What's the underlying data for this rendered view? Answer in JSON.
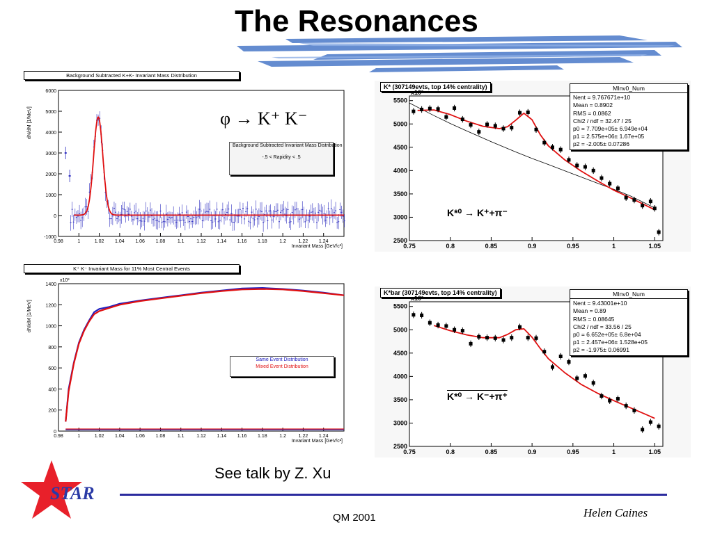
{
  "slide": {
    "title": "The  Resonances",
    "talk_note": "See talk by Z. Xu",
    "conference": "QM 2001",
    "author": "Helen Caines",
    "logo": "STAR",
    "brand_colors": {
      "blue": "#2b2b9e",
      "red": "#e8202a",
      "stripes": "#4a78c8"
    }
  },
  "chart_data": [
    {
      "id": "phi",
      "type": "scatter",
      "title": "Background Subtracted K+K- Invariant Mass Distribution",
      "xlabel": "Invariant Mass [GeV/c²]",
      "ylabel": "dN/dM [1/MeV]",
      "xlim": [
        0.98,
        1.26
      ],
      "ylim": [
        -1000,
        6000
      ],
      "x_ticks": [
        "0.98",
        "1",
        "1.02",
        "1.04",
        "1.06",
        "1.08",
        "1.1",
        "1.12",
        "1.14",
        "1.16",
        "1.18",
        "1.2",
        "1.22",
        "1.24"
      ],
      "y_ticks": [
        "-1000",
        "0",
        "1000",
        "2000",
        "3000",
        "4000",
        "5000",
        "6000"
      ],
      "annotation": "φ → K⁺ K⁻",
      "inset_title": "Background Subtracted Invariant Mass Distribution",
      "inset_subtitle": "-.5 < Rapidity < .5",
      "peak": {
        "mass": 1.019,
        "height": 4700,
        "width": 0.0045
      },
      "outliers": [
        [
          0.987,
          3000
        ],
        [
          0.991,
          1900
        ]
      ],
      "colors": {
        "points": "#3030c0",
        "fit": "#e01010"
      }
    },
    {
      "id": "kk-mixed",
      "type": "line",
      "title": "K⁺ K⁻ Invariant Mass for 11% Most Central Events",
      "xlabel": "Invariant Mass [GeV/c²]",
      "ylabel": "dN/dM [1/MeV]",
      "multiplier": "x10³",
      "xlim": [
        0.98,
        1.26
      ],
      "ylim": [
        0,
        1400
      ],
      "x_ticks": [
        "0.98",
        "1",
        "1.02",
        "1.04",
        "1.06",
        "1.08",
        "1.1",
        "1.12",
        "1.14",
        "1.16",
        "1.18",
        "1.2",
        "1.22",
        "1.24"
      ],
      "y_ticks": [
        "0",
        "200",
        "400",
        "600",
        "800",
        "1000",
        "1200",
        "1400"
      ],
      "series": [
        {
          "name": "Same Event Distribution",
          "color": "#2020c0",
          "x": [
            0.987,
            0.99,
            0.995,
            1.0,
            1.005,
            1.01,
            1.015,
            1.02,
            1.03,
            1.04,
            1.06,
            1.08,
            1.1,
            1.12,
            1.14,
            1.16,
            1.18,
            1.2,
            1.22,
            1.24,
            1.26
          ],
          "y": [
            90,
            400,
            650,
            840,
            960,
            1050,
            1130,
            1160,
            1180,
            1210,
            1240,
            1265,
            1290,
            1315,
            1335,
            1355,
            1360,
            1350,
            1335,
            1315,
            1290
          ]
        },
        {
          "name": "Mixed Event Distribution",
          "color": "#e01010",
          "x": [
            0.987,
            0.99,
            0.995,
            1.0,
            1.005,
            1.01,
            1.015,
            1.02,
            1.03,
            1.04,
            1.06,
            1.08,
            1.1,
            1.12,
            1.14,
            1.16,
            1.18,
            1.2,
            1.22,
            1.24,
            1.26
          ],
          "y": [
            90,
            380,
            640,
            830,
            950,
            1040,
            1110,
            1140,
            1170,
            1200,
            1235,
            1260,
            1285,
            1310,
            1330,
            1345,
            1350,
            1345,
            1330,
            1310,
            1290
          ]
        }
      ],
      "baseline_value": 0
    },
    {
      "id": "kstar",
      "type": "scatter",
      "title": "K* (307149evts, top 14% centrality)",
      "multiplier": "x10²",
      "xlim": [
        0.75,
        1.06
      ],
      "ylim": [
        2500,
        5600
      ],
      "x_ticks": [
        "0.75",
        "0.8",
        "0.85",
        "0.9",
        "0.95",
        "1",
        "1.05"
      ],
      "y_ticks": [
        "2500",
        "3000",
        "3500",
        "4000",
        "4500",
        "5000",
        "5500"
      ],
      "annotation": "K*⁰ → K⁺+π⁻",
      "stats": [
        [
          "MInv0_Num",
          ""
        ],
        [
          "Nent =",
          "9.767671e+10"
        ],
        [
          "Mean =",
          "0.8902"
        ],
        [
          "RMS =",
          "0.0862"
        ],
        [
          "Chi2 / ndf =",
          "32.47 / 25"
        ],
        [
          "p0 =",
          "7.709e+05± 6.949e+04"
        ],
        [
          "p1 =",
          "2.575e+06± 1.67e+05"
        ],
        [
          "p2 =",
          "-2.005± 0.07286"
        ]
      ],
      "points": [
        [
          0.755,
          5270
        ],
        [
          0.765,
          5310
        ],
        [
          0.775,
          5330
        ],
        [
          0.785,
          5320
        ],
        [
          0.795,
          5150
        ],
        [
          0.805,
          5340
        ],
        [
          0.815,
          5100
        ],
        [
          0.825,
          4980
        ],
        [
          0.835,
          4830
        ],
        [
          0.845,
          4990
        ],
        [
          0.855,
          4960
        ],
        [
          0.865,
          4900
        ],
        [
          0.875,
          4920
        ],
        [
          0.885,
          5240
        ],
        [
          0.895,
          5250
        ],
        [
          0.905,
          4880
        ],
        [
          0.915,
          4600
        ],
        [
          0.925,
          4500
        ],
        [
          0.935,
          4450
        ],
        [
          0.945,
          4230
        ],
        [
          0.955,
          4110
        ],
        [
          0.965,
          4080
        ],
        [
          0.975,
          4000
        ],
        [
          0.985,
          3840
        ],
        [
          0.995,
          3720
        ],
        [
          1.005,
          3620
        ],
        [
          1.015,
          3420
        ],
        [
          1.025,
          3370
        ],
        [
          1.035,
          3250
        ],
        [
          1.045,
          3340
        ],
        [
          1.05,
          3190
        ],
        [
          1.055,
          2680
        ]
      ],
      "fit_x": [
        0.76,
        0.78,
        0.8,
        0.82,
        0.84,
        0.86,
        0.87,
        0.88,
        0.89,
        0.9,
        0.91,
        0.92,
        0.94,
        0.96,
        0.98,
        1.0,
        1.02,
        1.05
      ],
      "fit_y": [
        5290,
        5300,
        5200,
        5060,
        4950,
        4900,
        4940,
        5080,
        5230,
        5090,
        4770,
        4530,
        4230,
        3990,
        3780,
        3580,
        3420,
        3160
      ],
      "bg_x": [
        0.75,
        0.78,
        0.8,
        0.82,
        0.85,
        0.88,
        0.9,
        0.92,
        0.95,
        0.98,
        1.0,
        1.02,
        1.05
      ],
      "bg_y": [
        5450,
        5180,
        5010,
        4850,
        4620,
        4400,
        4260,
        4130,
        3930,
        3730,
        3600,
        3460,
        3200
      ],
      "colors": {
        "points": "#000000",
        "fit": "#e01010",
        "background": "#000000"
      }
    },
    {
      "id": "kstarbar",
      "type": "scatter",
      "title": "K*bar (307149evts, top 14% centrality)",
      "multiplier": "x10²",
      "xlim": [
        0.75,
        1.06
      ],
      "ylim": [
        2500,
        5600
      ],
      "x_ticks": [
        "0.75",
        "0.8",
        "0.85",
        "0.9",
        "0.95",
        "1",
        "1.05"
      ],
      "y_ticks": [
        "2500",
        "3000",
        "3500",
        "4000",
        "4500",
        "5000",
        "5500"
      ],
      "annotation": "K*⁰ → K⁻+π⁺",
      "stats": [
        [
          "MInv0_Num",
          ""
        ],
        [
          "Nent =",
          "9.43001e+10"
        ],
        [
          "Mean =",
          "0.89"
        ],
        [
          "RMS =",
          "0.08645"
        ],
        [
          "Chi2 / ndf =",
          "33.56 / 25"
        ],
        [
          "p0 =",
          "6.652e+05± 6.8e+04"
        ],
        [
          "p1 =",
          "2.457e+06± 1.528e+05"
        ],
        [
          "p2 =",
          "-1.975± 0.06991"
        ]
      ],
      "points": [
        [
          0.755,
          5320
        ],
        [
          0.765,
          5310
        ],
        [
          0.775,
          5150
        ],
        [
          0.785,
          5100
        ],
        [
          0.795,
          5080
        ],
        [
          0.805,
          5000
        ],
        [
          0.815,
          4980
        ],
        [
          0.825,
          4700
        ],
        [
          0.835,
          4850
        ],
        [
          0.845,
          4830
        ],
        [
          0.855,
          4820
        ],
        [
          0.865,
          4780
        ],
        [
          0.875,
          4830
        ],
        [
          0.885,
          5060
        ],
        [
          0.895,
          4830
        ],
        [
          0.905,
          4820
        ],
        [
          0.915,
          4530
        ],
        [
          0.925,
          4200
        ],
        [
          0.935,
          4430
        ],
        [
          0.945,
          4310
        ],
        [
          0.955,
          3960
        ],
        [
          0.965,
          4010
        ],
        [
          0.975,
          3860
        ],
        [
          0.985,
          3580
        ],
        [
          0.995,
          3480
        ],
        [
          1.005,
          3520
        ],
        [
          1.015,
          3370
        ],
        [
          1.025,
          3270
        ],
        [
          1.035,
          2860
        ],
        [
          1.045,
          3020
        ],
        [
          1.055,
          2930
        ]
      ],
      "fit_x": [
        0.78,
        0.8,
        0.82,
        0.84,
        0.86,
        0.87,
        0.88,
        0.89,
        0.9,
        0.91,
        0.92,
        0.94,
        0.96,
        0.98,
        1.0,
        1.02,
        1.04,
        1.05
      ],
      "fit_y": [
        5090,
        4980,
        4890,
        4830,
        4830,
        4900,
        5000,
        5020,
        4840,
        4600,
        4380,
        4080,
        3830,
        3640,
        3480,
        3330,
        3180,
        3100
      ],
      "colors": {
        "points": "#000000",
        "fit": "#e01010"
      }
    }
  ],
  "legend": {
    "same": "Same Event Distribution",
    "mixed": "Mixed Event Distribution"
  }
}
